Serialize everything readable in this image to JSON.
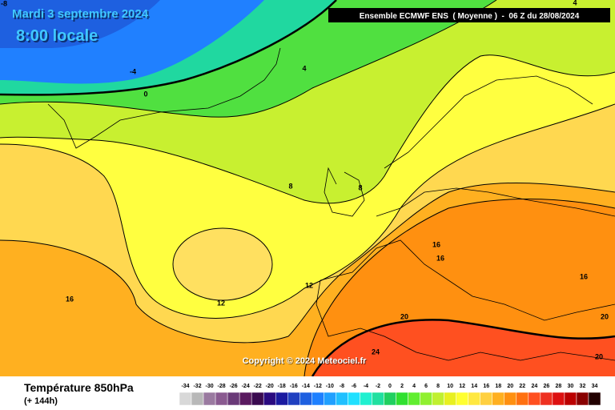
{
  "header": {
    "date": "Mardi 3 septembre 2024",
    "time": "8:00 locale",
    "model": "Ensemble ECMWF ENS  ( Moyenne )  -  06 Z du 28/08/2024",
    "copyright": "Copyright © 2024 Meteociel.fr"
  },
  "map": {
    "contour_labels": [
      -8,
      -4,
      0,
      4,
      4,
      8,
      8,
      12,
      12,
      16,
      16,
      16,
      16,
      20,
      20,
      20,
      24
    ]
  },
  "legend": {
    "title": "Température 850hPa",
    "lead": "(+ 144h)",
    "labels": [
      -34,
      -32,
      -30,
      -28,
      -26,
      -24,
      -22,
      -20,
      -18,
      -16,
      -14,
      -12,
      -10,
      -8,
      -6,
      -4,
      -2,
      0,
      2,
      4,
      6,
      8,
      10,
      12,
      14,
      16,
      18,
      20,
      22,
      24,
      26,
      28,
      30,
      32,
      34
    ],
    "colors": [
      "#d8d8d8",
      "#b8b8b8",
      "#9a7aa0",
      "#8a5a90",
      "#6a3a78",
      "#5a1a60",
      "#3a0a50",
      "#2a0a80",
      "#1a1aa0",
      "#2040c0",
      "#1e60e0",
      "#1e80ff",
      "#20a0ff",
      "#20c0ff",
      "#20e0ff",
      "#20f0d0",
      "#20e0a0",
      "#20d060",
      "#30e030",
      "#60ee30",
      "#90f030",
      "#c0f030",
      "#e8f020",
      "#ffff30",
      "#ffe840",
      "#ffd040",
      "#ffb020",
      "#ff9010",
      "#ff7010",
      "#ff5020",
      "#ee3020",
      "#dd1010",
      "#bb0000",
      "#880000",
      "#220000"
    ]
  }
}
